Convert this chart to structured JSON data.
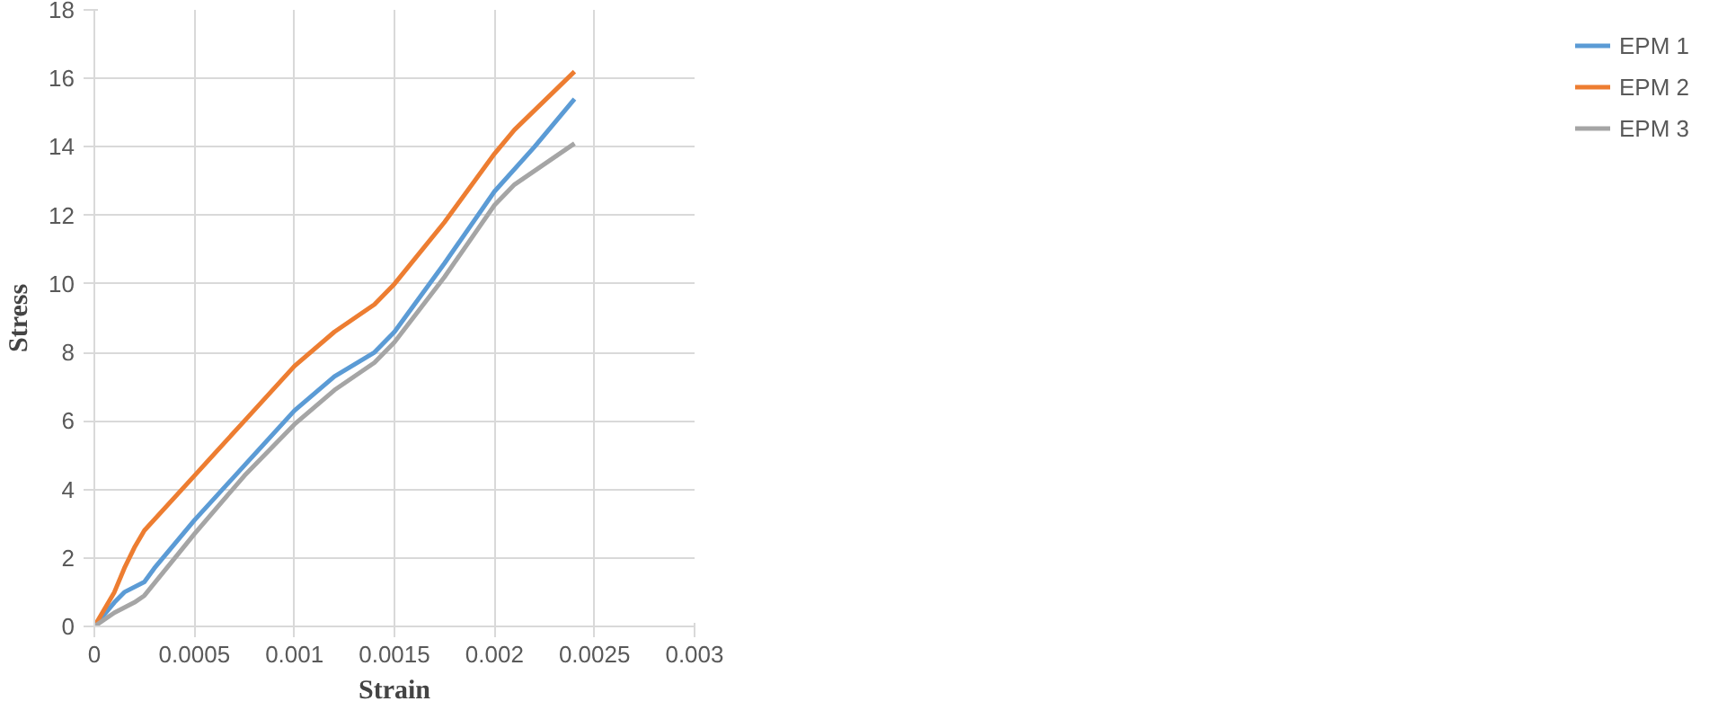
{
  "chart_data": {
    "type": "line",
    "xlabel": "Strain",
    "ylabel": "Stress",
    "xlim": [
      0,
      0.003
    ],
    "ylim": [
      0,
      18
    ],
    "xticks": [
      0,
      0.0005,
      0.001,
      0.0015,
      0.002,
      0.0025,
      0.003
    ],
    "yticks": [
      0,
      2,
      4,
      6,
      8,
      10,
      12,
      14,
      16,
      18
    ],
    "grid": true,
    "legend": "right",
    "marker": "none",
    "line_style": "solid",
    "series": [
      {
        "name": "EPM 1",
        "color": "#5b9bd5",
        "x": [
          0,
          0.0001,
          0.00015,
          0.00025,
          0.0003,
          0.0005,
          0.00075,
          0.001,
          0.0012,
          0.0014,
          0.0015,
          0.00175,
          0.002,
          0.0022,
          0.0024
        ],
        "values": [
          0,
          0.7,
          1.0,
          1.3,
          1.7,
          3.1,
          4.7,
          6.3,
          7.3,
          8.0,
          8.6,
          10.6,
          12.7,
          14.0,
          15.4
        ]
      },
      {
        "name": "EPM 2",
        "color": "#ed7d31",
        "x": [
          0,
          0.0001,
          0.00015,
          0.0002,
          0.00025,
          0.0005,
          0.00075,
          0.001,
          0.0012,
          0.0014,
          0.0015,
          0.00175,
          0.002,
          0.0021,
          0.0024
        ],
        "values": [
          0,
          1.0,
          1.7,
          2.3,
          2.8,
          4.4,
          6.0,
          7.6,
          8.6,
          9.4,
          10.0,
          11.8,
          13.8,
          14.5,
          16.2
        ]
      },
      {
        "name": "EPM 3",
        "color": "#a5a5a5",
        "x": [
          0,
          0.0001,
          0.0002,
          0.00025,
          0.0005,
          0.00075,
          0.001,
          0.0012,
          0.0014,
          0.0015,
          0.00175,
          0.002,
          0.0021,
          0.0024
        ],
        "values": [
          0,
          0.4,
          0.7,
          0.9,
          2.7,
          4.4,
          5.9,
          6.9,
          7.7,
          8.3,
          10.2,
          12.3,
          12.9,
          14.1
        ]
      }
    ]
  }
}
